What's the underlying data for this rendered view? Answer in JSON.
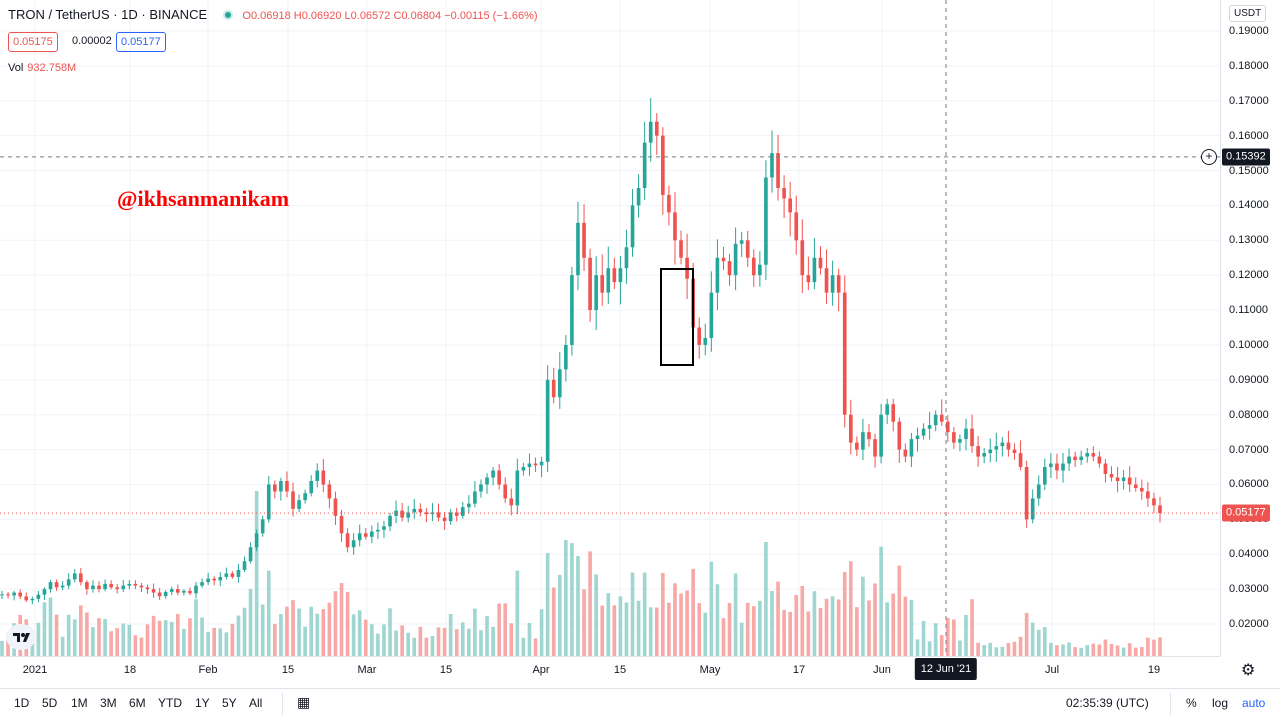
{
  "header": {
    "symbol": "TRON / TetherUS · 1D · BINANCE",
    "ohlc": "O0.06918 H0.06920 L0.06572 C0.06804 −0.00115 (−1.66%)",
    "bid": "0.05175",
    "spread": "0.00002",
    "ask": "0.05177",
    "vol_label": "Vol",
    "vol_value": "932.758M"
  },
  "watermark": "@ikhsanmanikam",
  "price_axis": {
    "currency": "USDT",
    "labels": [
      "0.19000",
      "0.18000",
      "0.17000",
      "0.16000",
      "0.15000",
      "0.14000",
      "0.13000",
      "0.12000",
      "0.11000",
      "0.10000",
      "0.09000",
      "0.08000",
      "0.07000",
      "0.06000",
      "0.05000",
      "0.04000",
      "0.03000",
      "0.02000"
    ],
    "crosshair_price": "0.15392",
    "last_price": "0.05177"
  },
  "time_axis": {
    "labels": [
      "2021",
      "18",
      "Feb",
      "15",
      "Mar",
      "15",
      "Apr",
      "15",
      "May",
      "17",
      "Jun",
      "Jul",
      "19"
    ],
    "crosshair_date": "12 Jun '21"
  },
  "bottom_bar": {
    "timeframes": [
      "1D",
      "5D",
      "1M",
      "3M",
      "6M",
      "YTD",
      "1Y",
      "5Y",
      "All"
    ],
    "clock": "02:35:39 (UTC)",
    "percent": "%",
    "log": "log",
    "auto": "auto"
  },
  "colors": {
    "up": "#26a69a",
    "down": "#ef5350",
    "up_vol": "#9fd6d1",
    "down_vol": "#f7a9a7",
    "accent": "#2962ff"
  },
  "chart_data": {
    "type": "candlestick",
    "symbol": "TRXUSDT",
    "interval": "1D",
    "ylim": [
      0.015,
      0.195
    ],
    "last_price": 0.05177,
    "annotation": "rectangle around the late-April dip",
    "closes_approx": [
      0.0285,
      0.0282,
      0.029,
      0.0279,
      0.0268,
      0.0272,
      0.0284,
      0.03,
      0.032,
      0.0305,
      0.031,
      0.0328,
      0.0345,
      0.032,
      0.03,
      0.031,
      0.03,
      0.0315,
      0.0305,
      0.03,
      0.031,
      0.0315,
      0.031,
      0.0305,
      0.03,
      0.029,
      0.028,
      0.0292,
      0.03,
      0.029,
      0.0295,
      0.0288,
      0.031,
      0.032,
      0.033,
      0.0325,
      0.0335,
      0.0345,
      0.0335,
      0.0355,
      0.038,
      0.042,
      0.046,
      0.05,
      0.06,
      0.058,
      0.061,
      0.058,
      0.053,
      0.0555,
      0.0575,
      0.061,
      0.064,
      0.06,
      0.056,
      0.051,
      0.046,
      0.042,
      0.044,
      0.046,
      0.045,
      0.0465,
      0.047,
      0.048,
      0.051,
      0.0525,
      0.0505,
      0.052,
      0.053,
      0.052,
      0.0515,
      0.052,
      0.0505,
      0.0495,
      0.052,
      0.051,
      0.0535,
      0.0545,
      0.058,
      0.06,
      0.062,
      0.064,
      0.06,
      0.056,
      0.054,
      0.064,
      0.065,
      0.066,
      0.0655,
      0.0665,
      0.09,
      0.085,
      0.093,
      0.1,
      0.12,
      0.135,
      0.125,
      0.11,
      0.12,
      0.115,
      0.122,
      0.118,
      0.122,
      0.128,
      0.14,
      0.145,
      0.158,
      0.164,
      0.16,
      0.143,
      0.138,
      0.13,
      0.125,
      0.119,
      0.105,
      0.1,
      0.102,
      0.115,
      0.125,
      0.124,
      0.12,
      0.129,
      0.13,
      0.125,
      0.12,
      0.123,
      0.148,
      0.155,
      0.145,
      0.142,
      0.138,
      0.13,
      0.12,
      0.118,
      0.125,
      0.122,
      0.115,
      0.12,
      0.115,
      0.08,
      0.072,
      0.07,
      0.075,
      0.073,
      0.068,
      0.08,
      0.083,
      0.078,
      0.07,
      0.068,
      0.073,
      0.074,
      0.076,
      0.077,
      0.08,
      0.078,
      0.075,
      0.072,
      0.073,
      0.076,
      0.071,
      0.068,
      0.069,
      0.07,
      0.071,
      0.072,
      0.07,
      0.069,
      0.065,
      0.05,
      0.056,
      0.06,
      0.065,
      0.066,
      0.064,
      0.066,
      0.068,
      0.067,
      0.068,
      0.069,
      0.068,
      0.066,
      0.063,
      0.062,
      0.061,
      0.062,
      0.06,
      0.059,
      0.058,
      0.056,
      0.054,
      0.0518
    ]
  }
}
